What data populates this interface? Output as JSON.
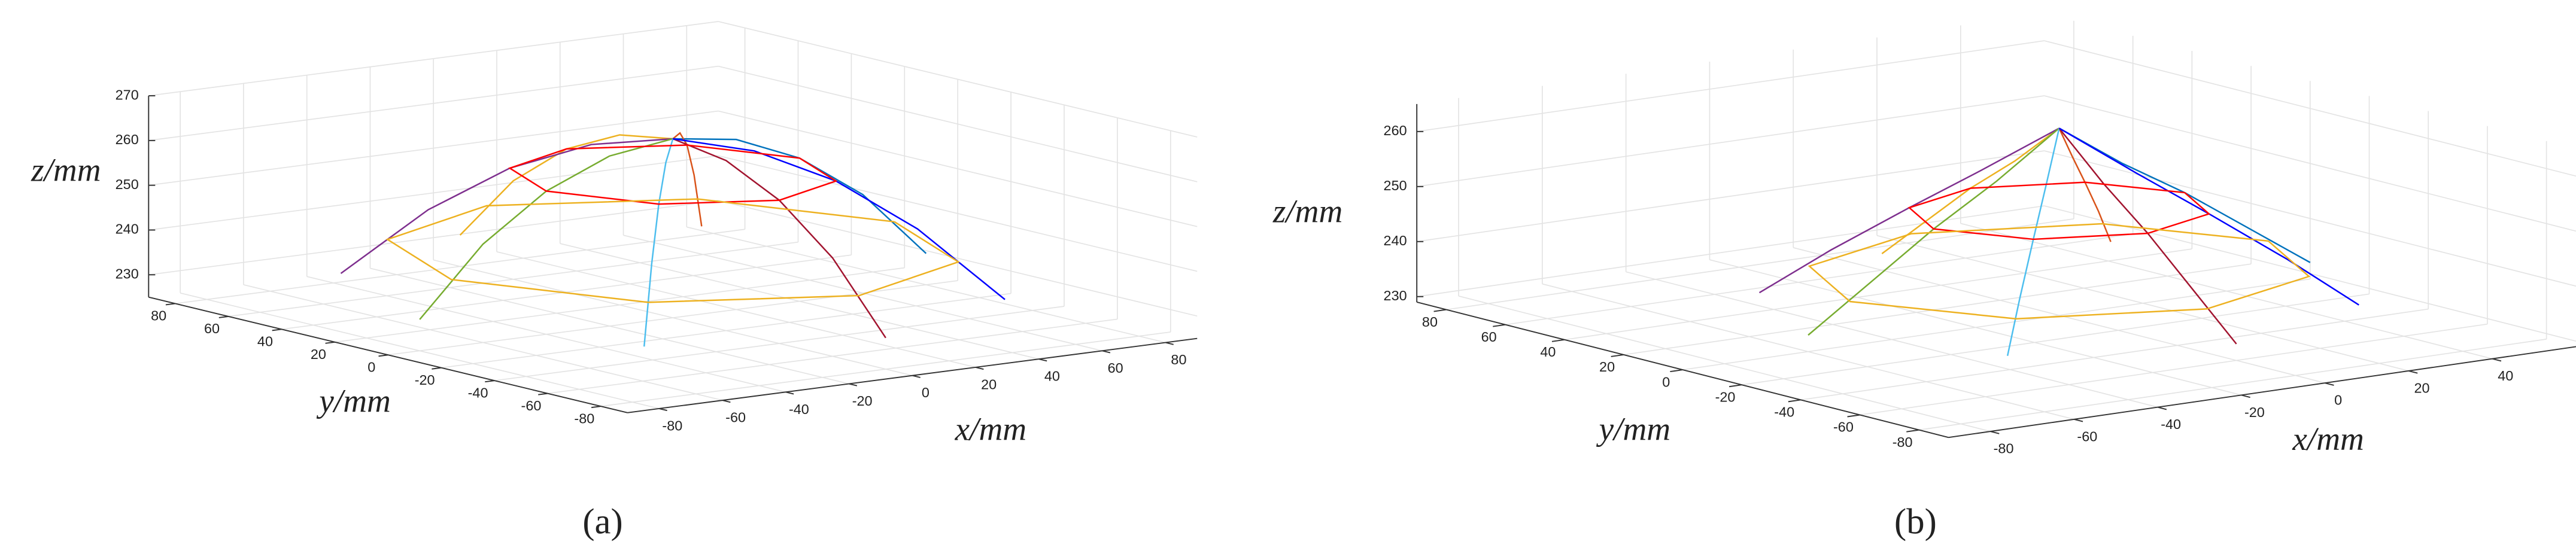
{
  "chart_data": [
    {
      "type": "line3d",
      "caption": "(a)",
      "xlabel": "x/mm",
      "ylabel": "y/mm",
      "zlabel": "z/mm",
      "xlim": [
        -90,
        90
      ],
      "ylim": [
        -90,
        90
      ],
      "zlim": [
        225,
        270
      ],
      "xticks": [
        -80,
        -60,
        -40,
        -20,
        0,
        20,
        40,
        60,
        80
      ],
      "yticks": [
        -80,
        -60,
        -40,
        -20,
        0,
        20,
        40,
        60,
        80
      ],
      "zticks": [
        230,
        240,
        250,
        260,
        270
      ],
      "grid": true,
      "series": [
        {
          "color": "#0072bd",
          "x": [
            0,
            20,
            40,
            60,
            80
          ],
          "y": [
            0,
            0,
            0,
            0,
            0
          ],
          "z": [
            265,
            263,
            257,
            247,
            232
          ]
        },
        {
          "color": "#d95319",
          "x": [
            0,
            14,
            28,
            42,
            57
          ],
          "y": [
            0,
            14,
            28,
            42,
            57
          ],
          "z": [
            265,
            263,
            257,
            247,
            232
          ]
        },
        {
          "color": "#edb120",
          "x": [
            0,
            0,
            0,
            0,
            0
          ],
          "y": [
            0,
            20,
            40,
            60,
            80
          ],
          "z": [
            265,
            263,
            257,
            247,
            232
          ]
        },
        {
          "color": "#7e2f8e",
          "x": [
            0,
            -14,
            -28,
            -42,
            -57
          ],
          "y": [
            0,
            14,
            28,
            42,
            57
          ],
          "z": [
            265,
            263,
            257,
            247,
            232
          ]
        },
        {
          "color": "#77ac30",
          "x": [
            0,
            -20,
            -40,
            -60,
            -80
          ],
          "y": [
            0,
            0,
            0,
            0,
            0
          ],
          "z": [
            265,
            263,
            257,
            247,
            232
          ]
        },
        {
          "color": "#4dbeee",
          "x": [
            0,
            -14,
            -28,
            -42,
            -57
          ],
          "y": [
            0,
            -14,
            -28,
            -42,
            -57
          ],
          "z": [
            265,
            263,
            257,
            247,
            232
          ]
        },
        {
          "color": "#a2142f",
          "x": [
            0,
            0,
            0,
            0,
            0
          ],
          "y": [
            0,
            -20,
            -40,
            -60,
            -80
          ],
          "z": [
            265,
            263,
            257,
            247,
            232
          ]
        },
        {
          "color": "#0000ff",
          "x": [
            0,
            14,
            28,
            42,
            57
          ],
          "y": [
            0,
            -14,
            -28,
            -42,
            -57
          ],
          "z": [
            265,
            263,
            257,
            247,
            232
          ]
        },
        {
          "color": "#ff0000",
          "x": [
            40,
            28,
            0,
            -28,
            -40,
            -28,
            0,
            28,
            40
          ],
          "y": [
            0,
            28,
            40,
            28,
            0,
            -28,
            -40,
            -28,
            0
          ],
          "z": [
            257,
            257,
            257,
            257,
            257,
            257,
            257,
            257,
            257
          ]
        },
        {
          "color": "#edb120",
          "x": [
            70,
            49,
            0,
            -49,
            -70,
            -49,
            0,
            49,
            70
          ],
          "y": [
            0,
            49,
            70,
            49,
            0,
            -49,
            -70,
            -49,
            0
          ],
          "z": [
            240,
            240,
            240,
            240,
            240,
            240,
            240,
            240,
            240
          ]
        }
      ]
    },
    {
      "type": "line3d",
      "caption": "(b)",
      "xlabel": "x/mm",
      "ylabel": "y/mm",
      "zlabel": "z/mm",
      "xlim": [
        -90,
        60
      ],
      "ylim": [
        -90,
        90
      ],
      "zlim": [
        229,
        265
      ],
      "xticks": [
        -80,
        -60,
        -40,
        -20,
        0,
        20,
        40
      ],
      "yticks": [
        -80,
        -60,
        -40,
        -20,
        0,
        20,
        40,
        60,
        80
      ],
      "zticks": [
        230,
        240,
        250,
        260
      ],
      "grid": true,
      "series": [
        {
          "color": "#0072bd",
          "x": [
            0,
            15,
            30,
            45,
            60
          ],
          "y": [
            0,
            0,
            0,
            0,
            0
          ],
          "z": [
            263,
            255,
            248,
            240,
            232
          ]
        },
        {
          "color": "#d95319",
          "x": [
            0,
            11,
            21,
            32,
            42
          ],
          "y": [
            0,
            11,
            21,
            32,
            42
          ],
          "z": [
            263,
            255,
            248,
            240,
            232
          ]
        },
        {
          "color": "#edb120",
          "x": [
            0,
            0,
            0,
            0,
            0
          ],
          "y": [
            0,
            15,
            30,
            45,
            60
          ],
          "z": [
            263,
            255,
            248,
            240,
            232
          ]
        },
        {
          "color": "#7e2f8e",
          "x": [
            0,
            -11,
            -21,
            -32,
            -42
          ],
          "y": [
            0,
            11,
            21,
            32,
            42
          ],
          "z": [
            263,
            255,
            248,
            240,
            232
          ]
        },
        {
          "color": "#77ac30",
          "x": [
            0,
            -15,
            -30,
            -45,
            -60
          ],
          "y": [
            0,
            0,
            0,
            0,
            0
          ],
          "z": [
            263,
            255,
            248,
            240,
            232
          ]
        },
        {
          "color": "#4dbeee",
          "x": [
            0,
            -11,
            -21,
            -32,
            -42
          ],
          "y": [
            0,
            -11,
            -21,
            -32,
            -42
          ],
          "z": [
            263,
            255,
            248,
            240,
            232
          ]
        },
        {
          "color": "#a2142f",
          "x": [
            0,
            0,
            0,
            0,
            0
          ],
          "y": [
            0,
            -15,
            -30,
            -45,
            -60
          ],
          "z": [
            263,
            255,
            248,
            240,
            232
          ]
        },
        {
          "color": "#0000ff",
          "x": [
            0,
            11,
            21,
            32,
            42
          ],
          "y": [
            0,
            -11,
            -21,
            -32,
            -42
          ],
          "z": [
            263,
            255,
            248,
            240,
            232
          ]
        },
        {
          "color": "#ff0000",
          "x": [
            30,
            21,
            0,
            -21,
            -30,
            -21,
            0,
            21,
            30
          ],
          "y": [
            0,
            21,
            30,
            21,
            0,
            -21,
            -30,
            -21,
            0
          ],
          "z": [
            248,
            248,
            248,
            248,
            248,
            248,
            248,
            248,
            248
          ]
        },
        {
          "color": "#edb120",
          "x": [
            50,
            35,
            0,
            -35,
            -50,
            -35,
            0,
            35,
            50
          ],
          "y": [
            0,
            35,
            50,
            35,
            0,
            -35,
            -50,
            -35,
            0
          ],
          "z": [
            237,
            237,
            237,
            237,
            237,
            237,
            237,
            237,
            237
          ]
        }
      ]
    }
  ]
}
